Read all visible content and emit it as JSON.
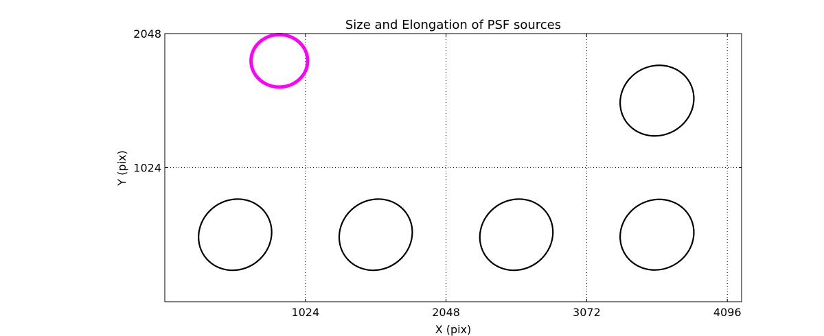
{
  "chart_data": {
    "type": "scatter",
    "title": "Size and Elongation of PSF sources",
    "xlabel": "X (pix)",
    "ylabel": "Y (pix)",
    "xlim": [
      0,
      4200
    ],
    "ylim": [
      0,
      2048
    ],
    "grid": true,
    "xticks": [
      {
        "value": 1024,
        "label": "1024"
      },
      {
        "value": 2048,
        "label": "2048"
      },
      {
        "value": 3072,
        "label": "3072"
      },
      {
        "value": 4096,
        "label": "4096"
      }
    ],
    "yticks": [
      {
        "value": 1024,
        "label": "1024"
      },
      {
        "value": 2048,
        "label": "2048"
      }
    ],
    "ellipses": [
      {
        "x": 512,
        "y": 512,
        "width": 545,
        "height": 530,
        "angle": -35,
        "highlight": false
      },
      {
        "x": 1536,
        "y": 512,
        "width": 545,
        "height": 530,
        "angle": -35,
        "highlight": false
      },
      {
        "x": 2560,
        "y": 512,
        "width": 545,
        "height": 530,
        "angle": -35,
        "highlight": false
      },
      {
        "x": 3584,
        "y": 512,
        "width": 545,
        "height": 530,
        "angle": -28,
        "highlight": false
      },
      {
        "x": 3584,
        "y": 1536,
        "width": 545,
        "height": 530,
        "angle": -28,
        "highlight": false
      },
      {
        "x": 834,
        "y": 1840,
        "width": 412,
        "height": 400,
        "angle": 0,
        "highlight": true
      }
    ],
    "colors": {
      "default": "#000000",
      "highlight": "#ff00ff"
    }
  }
}
